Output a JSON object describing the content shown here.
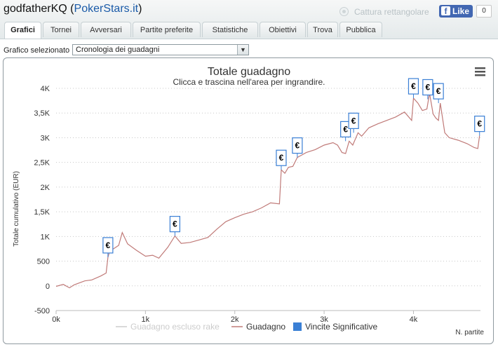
{
  "header": {
    "player": "godfatherKQ",
    "paren_open": " (",
    "site_link": "PokerStars.it",
    "paren_close": ")",
    "capture_label": "Cattura rettangolare",
    "fb_like": "Like",
    "fb_count": "0"
  },
  "tabs": [
    "Grafici",
    "Tornei",
    "Avversari",
    "Partite preferite",
    "Statistiche",
    "Obiettivi",
    "Trova",
    "Pubblica"
  ],
  "selector": {
    "label": "Grafico selezionato",
    "value": "Cronologia dei guadagni"
  },
  "chart_data": {
    "type": "line",
    "title": "Totale guadagno",
    "subtitle": "Clicca e trascina nell'area per ingrandire.",
    "ylabel": "Totale cumulativo (EUR)",
    "xlabel": "N. partite",
    "xlim": [
      0,
      4750
    ],
    "ylim": [
      -500,
      4000
    ],
    "x_ticks": [
      0,
      1000,
      2000,
      3000,
      4000
    ],
    "x_tick_labels": [
      "0k",
      "1k",
      "2k",
      "3k",
      "4k"
    ],
    "y_ticks": [
      -500,
      0,
      500,
      1000,
      1500,
      2000,
      2500,
      3000,
      3500,
      4000
    ],
    "y_tick_labels": [
      "-500",
      "0",
      "500",
      "1K",
      "1,5K",
      "2K",
      "2,5K",
      "3K",
      "3,5K",
      "4K"
    ],
    "grid": "horizontal dotted",
    "legend_position": "bottom",
    "series": [
      {
        "name": "Guadagno escluso rake",
        "color": "#cccccc",
        "hidden": true,
        "x": [],
        "y": []
      },
      {
        "name": "Guadagno",
        "color": "#c07a78",
        "x": [
          0,
          80,
          150,
          200,
          260,
          320,
          400,
          500,
          560,
          580,
          600,
          700,
          740,
          800,
          900,
          1000,
          1080,
          1150,
          1250,
          1330,
          1400,
          1500,
          1600,
          1700,
          1800,
          1900,
          2000,
          2100,
          2200,
          2300,
          2400,
          2500,
          2520,
          2560,
          2600,
          2650,
          2700,
          2750,
          2800,
          2900,
          3000,
          3100,
          3150,
          3200,
          3240,
          3280,
          3320,
          3380,
          3420,
          3500,
          3600,
          3700,
          3800,
          3900,
          3980,
          4000,
          4050,
          4100,
          4150,
          4180,
          4220,
          4250,
          4280,
          4300,
          4350,
          4400,
          4500,
          4600,
          4680,
          4720,
          4740
        ],
        "y": [
          -10,
          30,
          -40,
          20,
          60,
          100,
          120,
          200,
          260,
          580,
          700,
          820,
          1080,
          850,
          720,
          600,
          620,
          560,
          780,
          1010,
          860,
          880,
          930,
          980,
          1150,
          1300,
          1380,
          1450,
          1500,
          1580,
          1680,
          1660,
          2350,
          2280,
          2400,
          2420,
          2600,
          2650,
          2700,
          2760,
          2850,
          2900,
          2850,
          2700,
          2680,
          2930,
          2850,
          3100,
          3030,
          3200,
          3280,
          3350,
          3420,
          3520,
          3350,
          3800,
          3700,
          3550,
          3580,
          3900,
          3480,
          3400,
          3350,
          3700,
          3100,
          3000,
          2950,
          2880,
          2800,
          2780,
          3040
        ]
      },
      {
        "name": "Vincite Significative",
        "color": "#3a7fd5",
        "type": "flags",
        "marker_label": "€",
        "x": [
          580,
          1330,
          2520,
          2700,
          3240,
          3330,
          4000,
          4160,
          4280,
          4740
        ],
        "y": [
          580,
          1010,
          2350,
          2600,
          2930,
          3100,
          3800,
          3780,
          3700,
          3040
        ]
      }
    ]
  }
}
